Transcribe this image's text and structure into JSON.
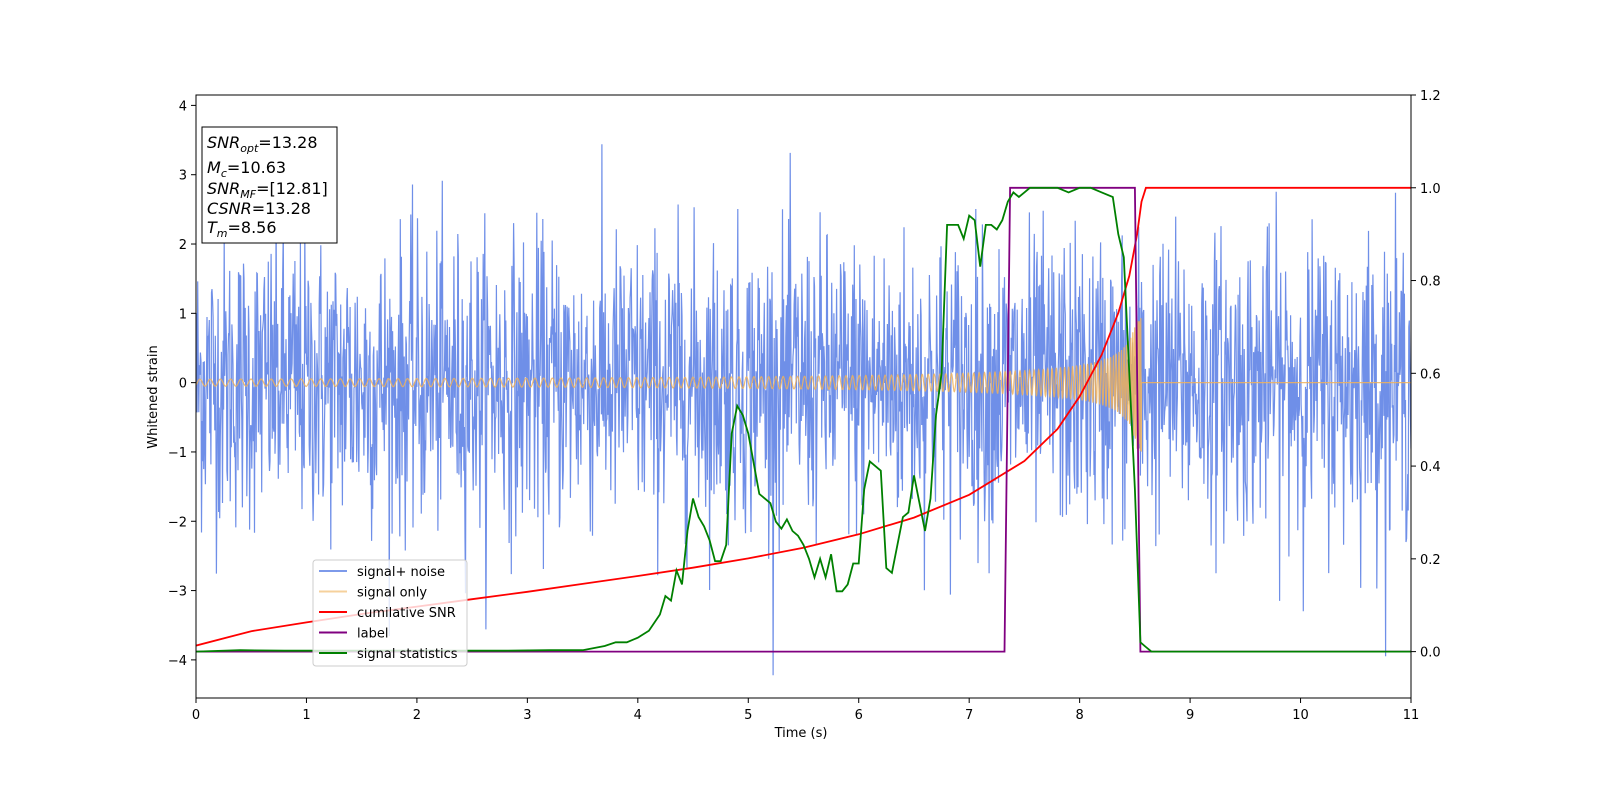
{
  "chart_data": {
    "type": "line",
    "xlabel": "Time (s)",
    "ylabel": "Whitened strain",
    "xlim": [
      0,
      11
    ],
    "ylim_left": [
      -4.55,
      4.15
    ],
    "ylim_right": [
      -0.1,
      1.2
    ],
    "x_ticks": [
      "0",
      "1",
      "2",
      "3",
      "4",
      "5",
      "6",
      "7",
      "8",
      "9",
      "10",
      "11"
    ],
    "y_ticks_left": [
      "−4",
      "−3",
      "−2",
      "−1",
      "0",
      "1",
      "2",
      "3",
      "4"
    ],
    "y_ticks_right": [
      "0.0",
      "0.2",
      "0.4",
      "0.6",
      "0.8",
      "1.0",
      "1.2"
    ],
    "grid": false,
    "legend_position": "lower-left",
    "info_box": [
      {
        "main": "SNR",
        "sub": "opt",
        "value": "=13.28"
      },
      {
        "main": "M",
        "sub": "c",
        "value": "=10.63"
      },
      {
        "main": "SNR",
        "sub": "MF",
        "value": "=[12.81]"
      },
      {
        "main": "CSNR",
        "sub": "",
        "value": "=13.28"
      },
      {
        "main": "T",
        "sub": "m",
        "value": "=8.56"
      }
    ],
    "series": [
      {
        "name": "signal+ noise",
        "axis": "left",
        "color": "#6f8fe8",
        "kind": "noise",
        "noise_std": 1.0,
        "x_range": [
          0,
          11
        ],
        "samples": 2200
      },
      {
        "name": "signal only",
        "axis": "left",
        "color": "#f0b25a",
        "kind": "chirp",
        "t_merge": 8.56,
        "t_start": 0,
        "amp_start": 0.05,
        "amp_peak": 1.0,
        "x_range": [
          0,
          11
        ]
      },
      {
        "name": "cumilative SNR",
        "axis": "right",
        "color": "#ff0000",
        "x": [
          0,
          0.5,
          1,
          1.5,
          2,
          2.5,
          3,
          3.5,
          4,
          4.5,
          5,
          5.5,
          6,
          6.5,
          7,
          7.5,
          7.8,
          8.0,
          8.2,
          8.35,
          8.45,
          8.52,
          8.56,
          8.6,
          11
        ],
        "y": [
          0.013,
          0.044,
          0.063,
          0.081,
          0.097,
          0.113,
          0.129,
          0.146,
          0.163,
          0.181,
          0.201,
          0.224,
          0.253,
          0.289,
          0.338,
          0.411,
          0.48,
          0.55,
          0.64,
          0.73,
          0.81,
          0.9,
          0.97,
          1.0,
          1.0
        ]
      },
      {
        "name": "label",
        "axis": "right",
        "color": "#800080",
        "x": [
          0,
          7.32,
          7.37,
          8.5,
          8.55,
          11
        ],
        "y": [
          0,
          0,
          1,
          1,
          0,
          0
        ]
      },
      {
        "name": "signal statistics",
        "axis": "right",
        "color": "#008000",
        "x": [
          0,
          0.4,
          0.8,
          1.2,
          1.6,
          2.0,
          2.4,
          2.8,
          3.2,
          3.5,
          3.7,
          3.8,
          3.9,
          4.0,
          4.1,
          4.2,
          4.25,
          4.3,
          4.35,
          4.4,
          4.45,
          4.5,
          4.55,
          4.6,
          4.65,
          4.7,
          4.75,
          4.8,
          4.85,
          4.9,
          4.95,
          5.0,
          5.1,
          5.2,
          5.25,
          5.3,
          5.35,
          5.4,
          5.45,
          5.5,
          5.55,
          5.6,
          5.65,
          5.7,
          5.75,
          5.8,
          5.85,
          5.9,
          5.95,
          6.0,
          6.05,
          6.1,
          6.15,
          6.2,
          6.25,
          6.3,
          6.35,
          6.4,
          6.45,
          6.5,
          6.55,
          6.6,
          6.65,
          6.7,
          6.75,
          6.8,
          6.85,
          6.9,
          6.95,
          7.0,
          7.05,
          7.1,
          7.15,
          7.2,
          7.25,
          7.3,
          7.35,
          7.4,
          7.45,
          7.5,
          7.55,
          7.6,
          7.7,
          7.8,
          7.9,
          8.0,
          8.1,
          8.2,
          8.3,
          8.35,
          8.4,
          8.45,
          8.5,
          8.55,
          8.6,
          8.65,
          8.75,
          9,
          11
        ],
        "y": [
          0,
          0.003,
          0.002,
          0.002,
          0.002,
          0.002,
          0.002,
          0.002,
          0.003,
          0.003,
          0.012,
          0.02,
          0.02,
          0.03,
          0.045,
          0.08,
          0.12,
          0.11,
          0.175,
          0.145,
          0.26,
          0.33,
          0.29,
          0.27,
          0.24,
          0.195,
          0.195,
          0.23,
          0.47,
          0.53,
          0.51,
          0.47,
          0.34,
          0.32,
          0.28,
          0.265,
          0.285,
          0.26,
          0.25,
          0.23,
          0.2,
          0.16,
          0.2,
          0.16,
          0.21,
          0.13,
          0.13,
          0.145,
          0.19,
          0.19,
          0.35,
          0.41,
          0.4,
          0.39,
          0.18,
          0.17,
          0.23,
          0.29,
          0.3,
          0.38,
          0.32,
          0.26,
          0.33,
          0.51,
          0.6,
          0.92,
          0.92,
          0.92,
          0.89,
          0.94,
          0.93,
          0.83,
          0.92,
          0.92,
          0.91,
          0.93,
          0.97,
          0.99,
          0.98,
          0.99,
          1.0,
          1.0,
          1.0,
          1.0,
          0.99,
          1.0,
          1.0,
          0.99,
          0.98,
          0.9,
          0.85,
          0.6,
          0.35,
          0.02,
          0.01,
          0.0,
          0.0,
          0.0,
          0.0
        ]
      }
    ]
  }
}
